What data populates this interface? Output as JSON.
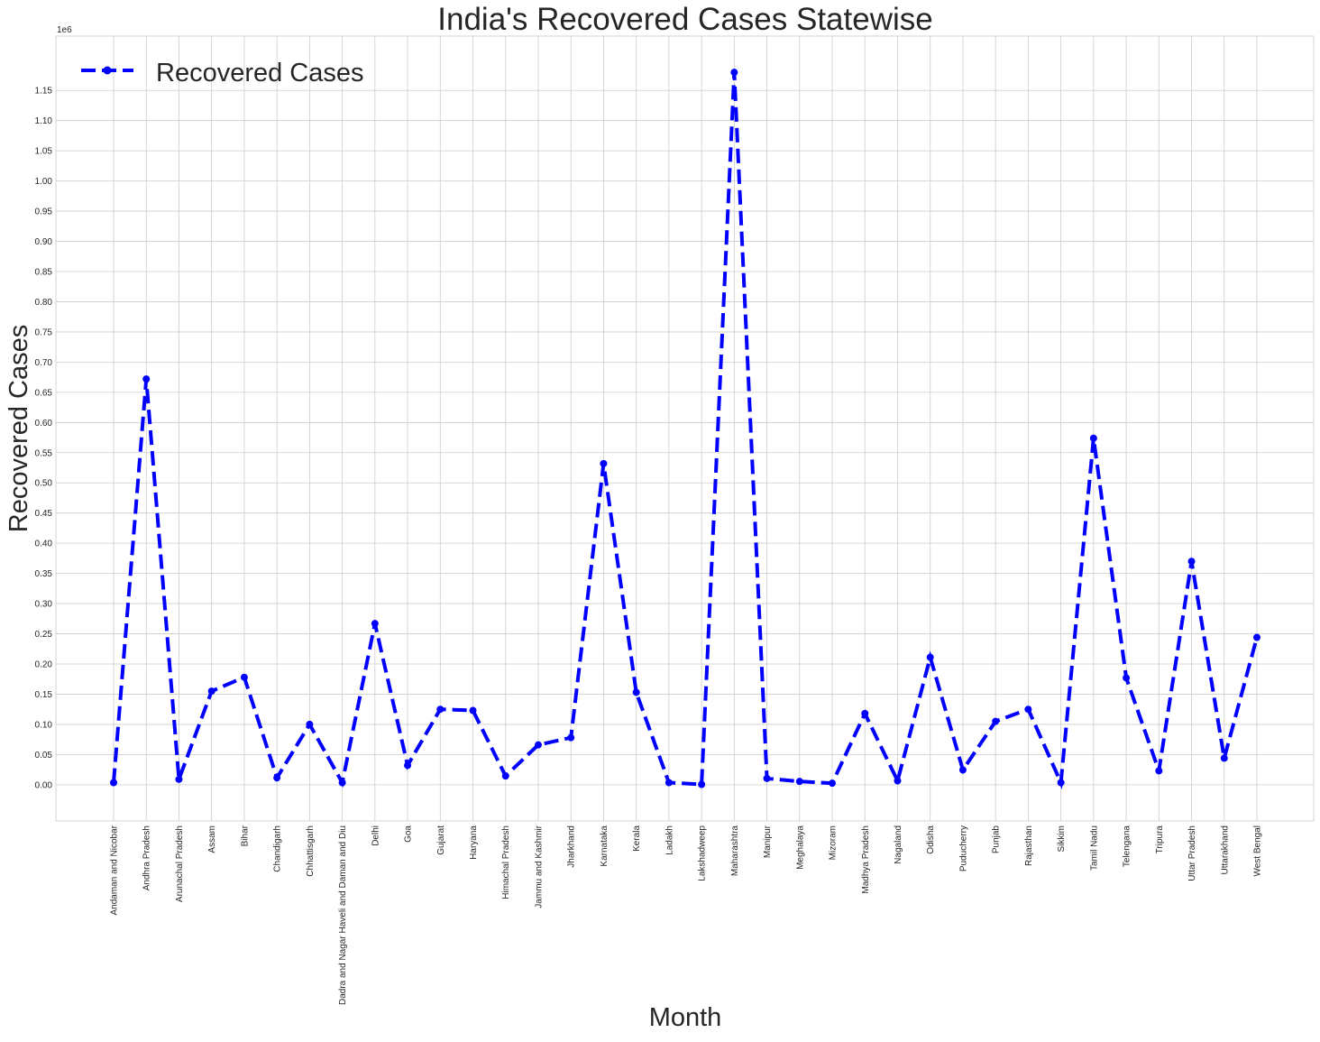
{
  "chart_data": {
    "type": "line",
    "title": "India's Recovered Cases Statewise",
    "xlabel": "Month",
    "ylabel": "Recovered Cases",
    "y_multiplier_label": "1e6",
    "ylim": [
      -0.06,
      1.24
    ],
    "y_ticks": [
      "0.00",
      "0.05",
      "0.10",
      "0.15",
      "0.20",
      "0.25",
      "0.30",
      "0.35",
      "0.40",
      "0.45",
      "0.50",
      "0.55",
      "0.60",
      "0.65",
      "0.70",
      "0.75",
      "0.80",
      "0.85",
      "0.90",
      "0.95",
      "1.00",
      "1.05",
      "1.10",
      "1.15"
    ],
    "grid": true,
    "legend": "top-left",
    "categories": [
      "Andaman and Nicobar",
      "Andhra Pradesh",
      "Arunachal Pradesh",
      "Assam",
      "Bihar",
      "Chandigarh",
      "Chhattisgarh",
      "Dadra and Nagar Haveli and Daman and Diu",
      "Delhi",
      "Goa",
      "Gujarat",
      "Haryana",
      "Himachal Pradesh",
      "Jammu and Kashmir",
      "Jharkhand",
      "Karnataka",
      "Kerala",
      "Ladakh",
      "Lakshadweep",
      "Maharashtra",
      "Manipur",
      "Meghalaya",
      "Mizoram",
      "Madhya Pradesh",
      "Nagaland",
      "Odisha",
      "Puducherry",
      "Punjab",
      "Rajasthan",
      "Sikkim",
      "Tamil Nadu",
      "Telengana",
      "Tripura",
      "Uttar Pradesh",
      "Uttarakhand",
      "West Bengal"
    ],
    "series": [
      {
        "name": "Recovered Cases",
        "color": "#0000ff",
        "style": "dashed",
        "marker": "circle",
        "values": [
          0.0035,
          0.672,
          0.009,
          0.155,
          0.178,
          0.0115,
          0.1,
          0.0035,
          0.267,
          0.032,
          0.125,
          0.123,
          0.0145,
          0.066,
          0.078,
          0.532,
          0.153,
          0.0035,
          0.0005,
          1.18,
          0.0105,
          0.0055,
          0.0025,
          0.118,
          0.0065,
          0.211,
          0.0245,
          0.105,
          0.125,
          0.0035,
          0.574,
          0.177,
          0.023,
          0.37,
          0.044,
          0.244
        ]
      }
    ]
  }
}
